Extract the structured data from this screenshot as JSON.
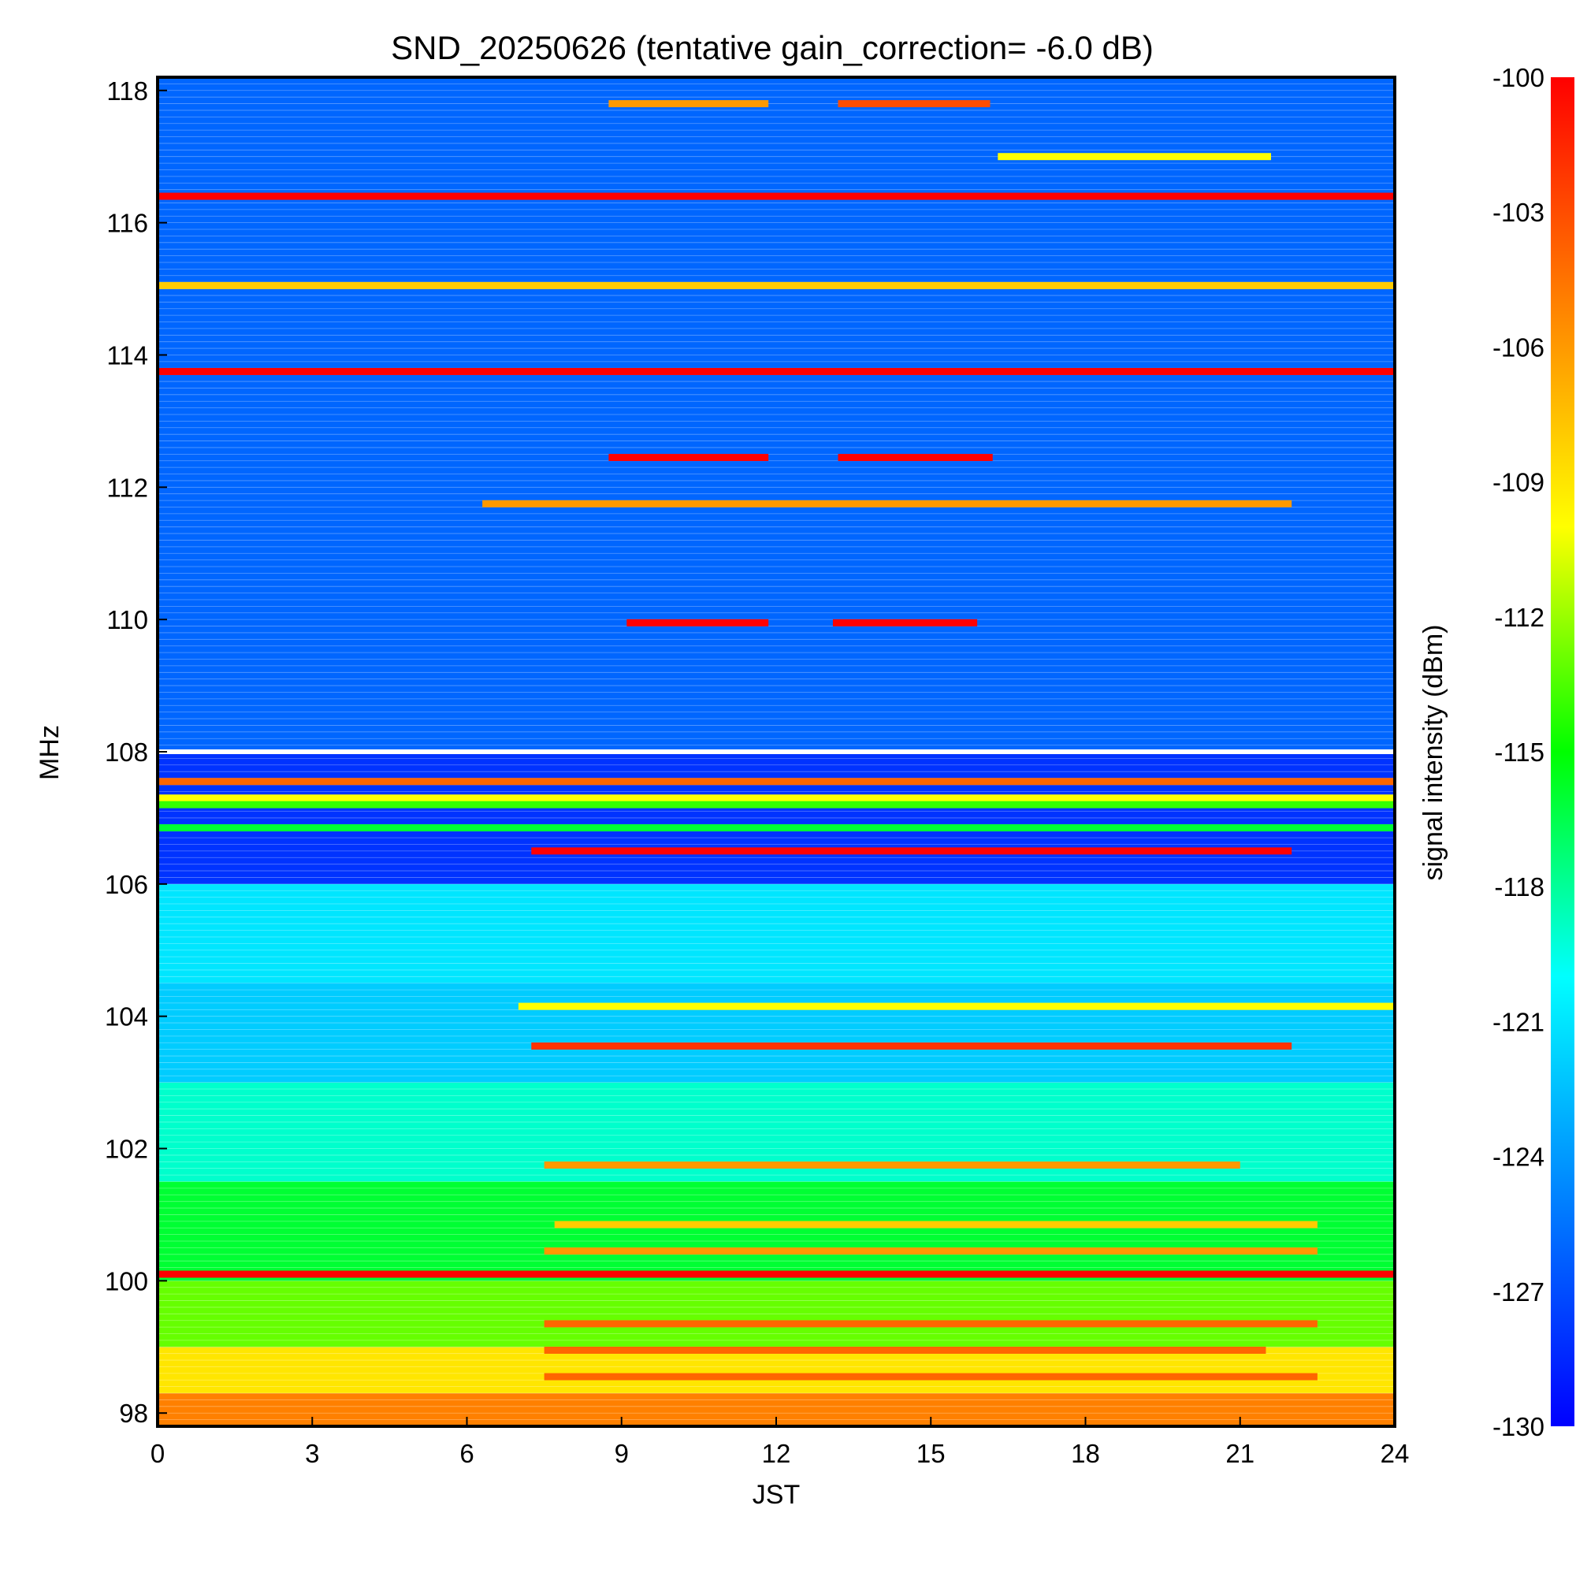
{
  "chart_data": {
    "type": "heatmap",
    "title": "SND_20250626 (tentative gain_correction= -6.0 dB)",
    "xlabel": "JST",
    "ylabel": "MHz",
    "colorbar_label": "signal intensity (dBm)",
    "xlim": [
      0,
      24
    ],
    "ylim": [
      97.8,
      118.2
    ],
    "x_ticks": [
      "0",
      "3",
      "6",
      "9",
      "12",
      "15",
      "18",
      "21",
      "24"
    ],
    "y_ticks": [
      "98",
      "100",
      "102",
      "104",
      "106",
      "108",
      "110",
      "112",
      "114",
      "116",
      "118"
    ],
    "colorbar_range": [
      -130,
      -100
    ],
    "colorbar_ticks": [
      "-100",
      "-103",
      "-106",
      "-109",
      "-112",
      "-115",
      "-118",
      "-121",
      "-124",
      "-127",
      "-130"
    ],
    "colormap": [
      "#0000ff",
      "#0080ff",
      "#00ffff",
      "#00ff00",
      "#ffff00",
      "#ff8000",
      "#ff0000"
    ],
    "background_bands": [
      {
        "f0": 97.8,
        "f1": 98.3,
        "value": -105
      },
      {
        "f0": 98.3,
        "f1": 99.0,
        "value": -109
      },
      {
        "f0": 99.0,
        "f1": 100.0,
        "value": -113
      },
      {
        "f0": 100.0,
        "f1": 101.5,
        "value": -116
      },
      {
        "f0": 101.5,
        "f1": 103.0,
        "value": -119
      },
      {
        "f0": 103.0,
        "f1": 104.5,
        "value": -122
      },
      {
        "f0": 104.5,
        "f1": 106.0,
        "value": -121
      },
      {
        "f0": 106.0,
        "f1": 108.0,
        "value": -128
      },
      {
        "f0": 108.0,
        "f1": 118.2,
        "value": -126
      }
    ],
    "signals": [
      {
        "freq": 116.4,
        "t0": 0,
        "t1": 24,
        "value": -100
      },
      {
        "freq": 113.75,
        "t0": 0,
        "t1": 24,
        "value": -100
      },
      {
        "freq": 115.05,
        "t0": 0,
        "t1": 24,
        "value": -108
      },
      {
        "freq": 111.75,
        "t0": 6.3,
        "t1": 22.0,
        "value": -106
      },
      {
        "freq": 117.0,
        "t0": 16.3,
        "t1": 21.6,
        "value": -110
      },
      {
        "freq": 117.8,
        "t0": 8.75,
        "t1": 11.85,
        "value": -106
      },
      {
        "freq": 117.8,
        "t0": 13.2,
        "t1": 16.15,
        "value": -103
      },
      {
        "freq": 112.45,
        "t0": 8.75,
        "t1": 11.85,
        "value": -100
      },
      {
        "freq": 112.45,
        "t0": 13.2,
        "t1": 16.2,
        "value": -100
      },
      {
        "freq": 109.95,
        "t0": 9.1,
        "t1": 11.85,
        "value": -100
      },
      {
        "freq": 109.95,
        "t0": 13.1,
        "t1": 15.9,
        "value": -100
      },
      {
        "freq": 107.55,
        "t0": 0,
        "t1": 24,
        "value": -104
      },
      {
        "freq": 107.3,
        "t0": 0,
        "t1": 24,
        "value": -110
      },
      {
        "freq": 107.2,
        "t0": 0,
        "t1": 24,
        "value": -114
      },
      {
        "freq": 106.85,
        "t0": 0,
        "t1": 24,
        "value": -116
      },
      {
        "freq": 106.5,
        "t0": 7.25,
        "t1": 22.0,
        "value": -100
      },
      {
        "freq": 103.55,
        "t0": 7.25,
        "t1": 22.0,
        "value": -102
      },
      {
        "freq": 104.15,
        "t0": 7.0,
        "t1": 24,
        "value": -110
      },
      {
        "freq": 100.1,
        "t0": 0,
        "t1": 24,
        "value": -100
      },
      {
        "freq": 101.75,
        "t0": 7.5,
        "t1": 21.0,
        "value": -106
      },
      {
        "freq": 100.85,
        "t0": 7.7,
        "t1": 22.5,
        "value": -108
      },
      {
        "freq": 100.45,
        "t0": 7.5,
        "t1": 22.5,
        "value": -106
      },
      {
        "freq": 99.35,
        "t0": 7.5,
        "t1": 22.5,
        "value": -104
      },
      {
        "freq": 98.95,
        "t0": 7.5,
        "t1": 21.5,
        "value": -104
      },
      {
        "freq": 98.55,
        "t0": 7.5,
        "t1": 22.5,
        "value": -104
      }
    ]
  }
}
